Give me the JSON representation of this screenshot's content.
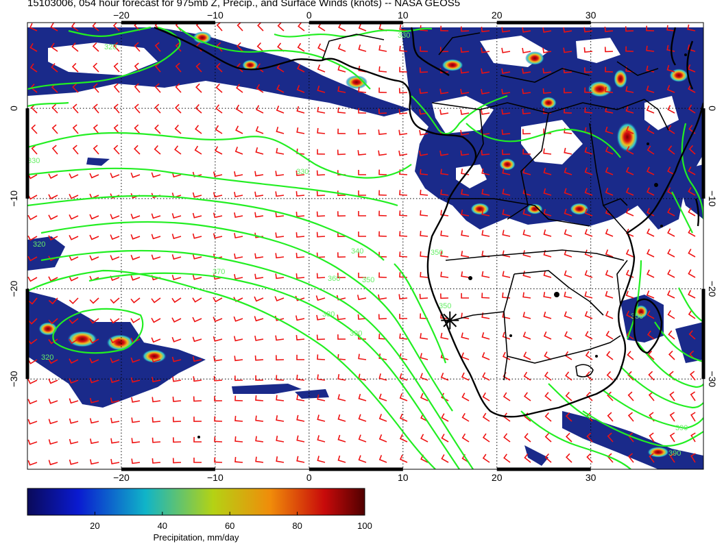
{
  "title": "15103006, 054 hour forecast for 975mb Z, Precip., and Surface Winds (knots) -- NASA GEOS5",
  "map": {
    "lon_range": [
      -30,
      42
    ],
    "lat_range": [
      -40,
      9.5
    ],
    "lon_ticks": [
      -20,
      -10,
      0,
      10,
      20,
      30
    ],
    "lat_ticks": [
      0,
      -10,
      -20,
      -30
    ],
    "lon_tick_labels": [
      "−20",
      "−10",
      "0",
      "10",
      "20",
      "30"
    ],
    "lat_tick_labels": [
      "0",
      "−10",
      "−20",
      "−30"
    ],
    "grid_lines": "dotted",
    "marker": {
      "lon": 15,
      "lat": -23.5,
      "symbol": "asterisk"
    }
  },
  "contours": {
    "color": "#22ee22",
    "labels": [
      "330",
      "330",
      "340",
      "350",
      "360",
      "370",
      "380",
      "390",
      "330",
      "350",
      "350",
      "320",
      "320",
      "320",
      "350",
      "390",
      "390"
    ]
  },
  "colors": {
    "wind_barbs": "#ee1111",
    "coast": "#000000",
    "contour": "#22ee22",
    "contour_label": "#66ee66",
    "precip_low": "#1a2a8a",
    "precip_high": "#7a0000"
  },
  "colorbar": {
    "ticks": [
      "20",
      "40",
      "60",
      "80",
      "100"
    ],
    "tick_values": [
      20,
      40,
      60,
      80,
      100
    ],
    "range": [
      0,
      100
    ],
    "label": "Precipitation, mm/day"
  }
}
